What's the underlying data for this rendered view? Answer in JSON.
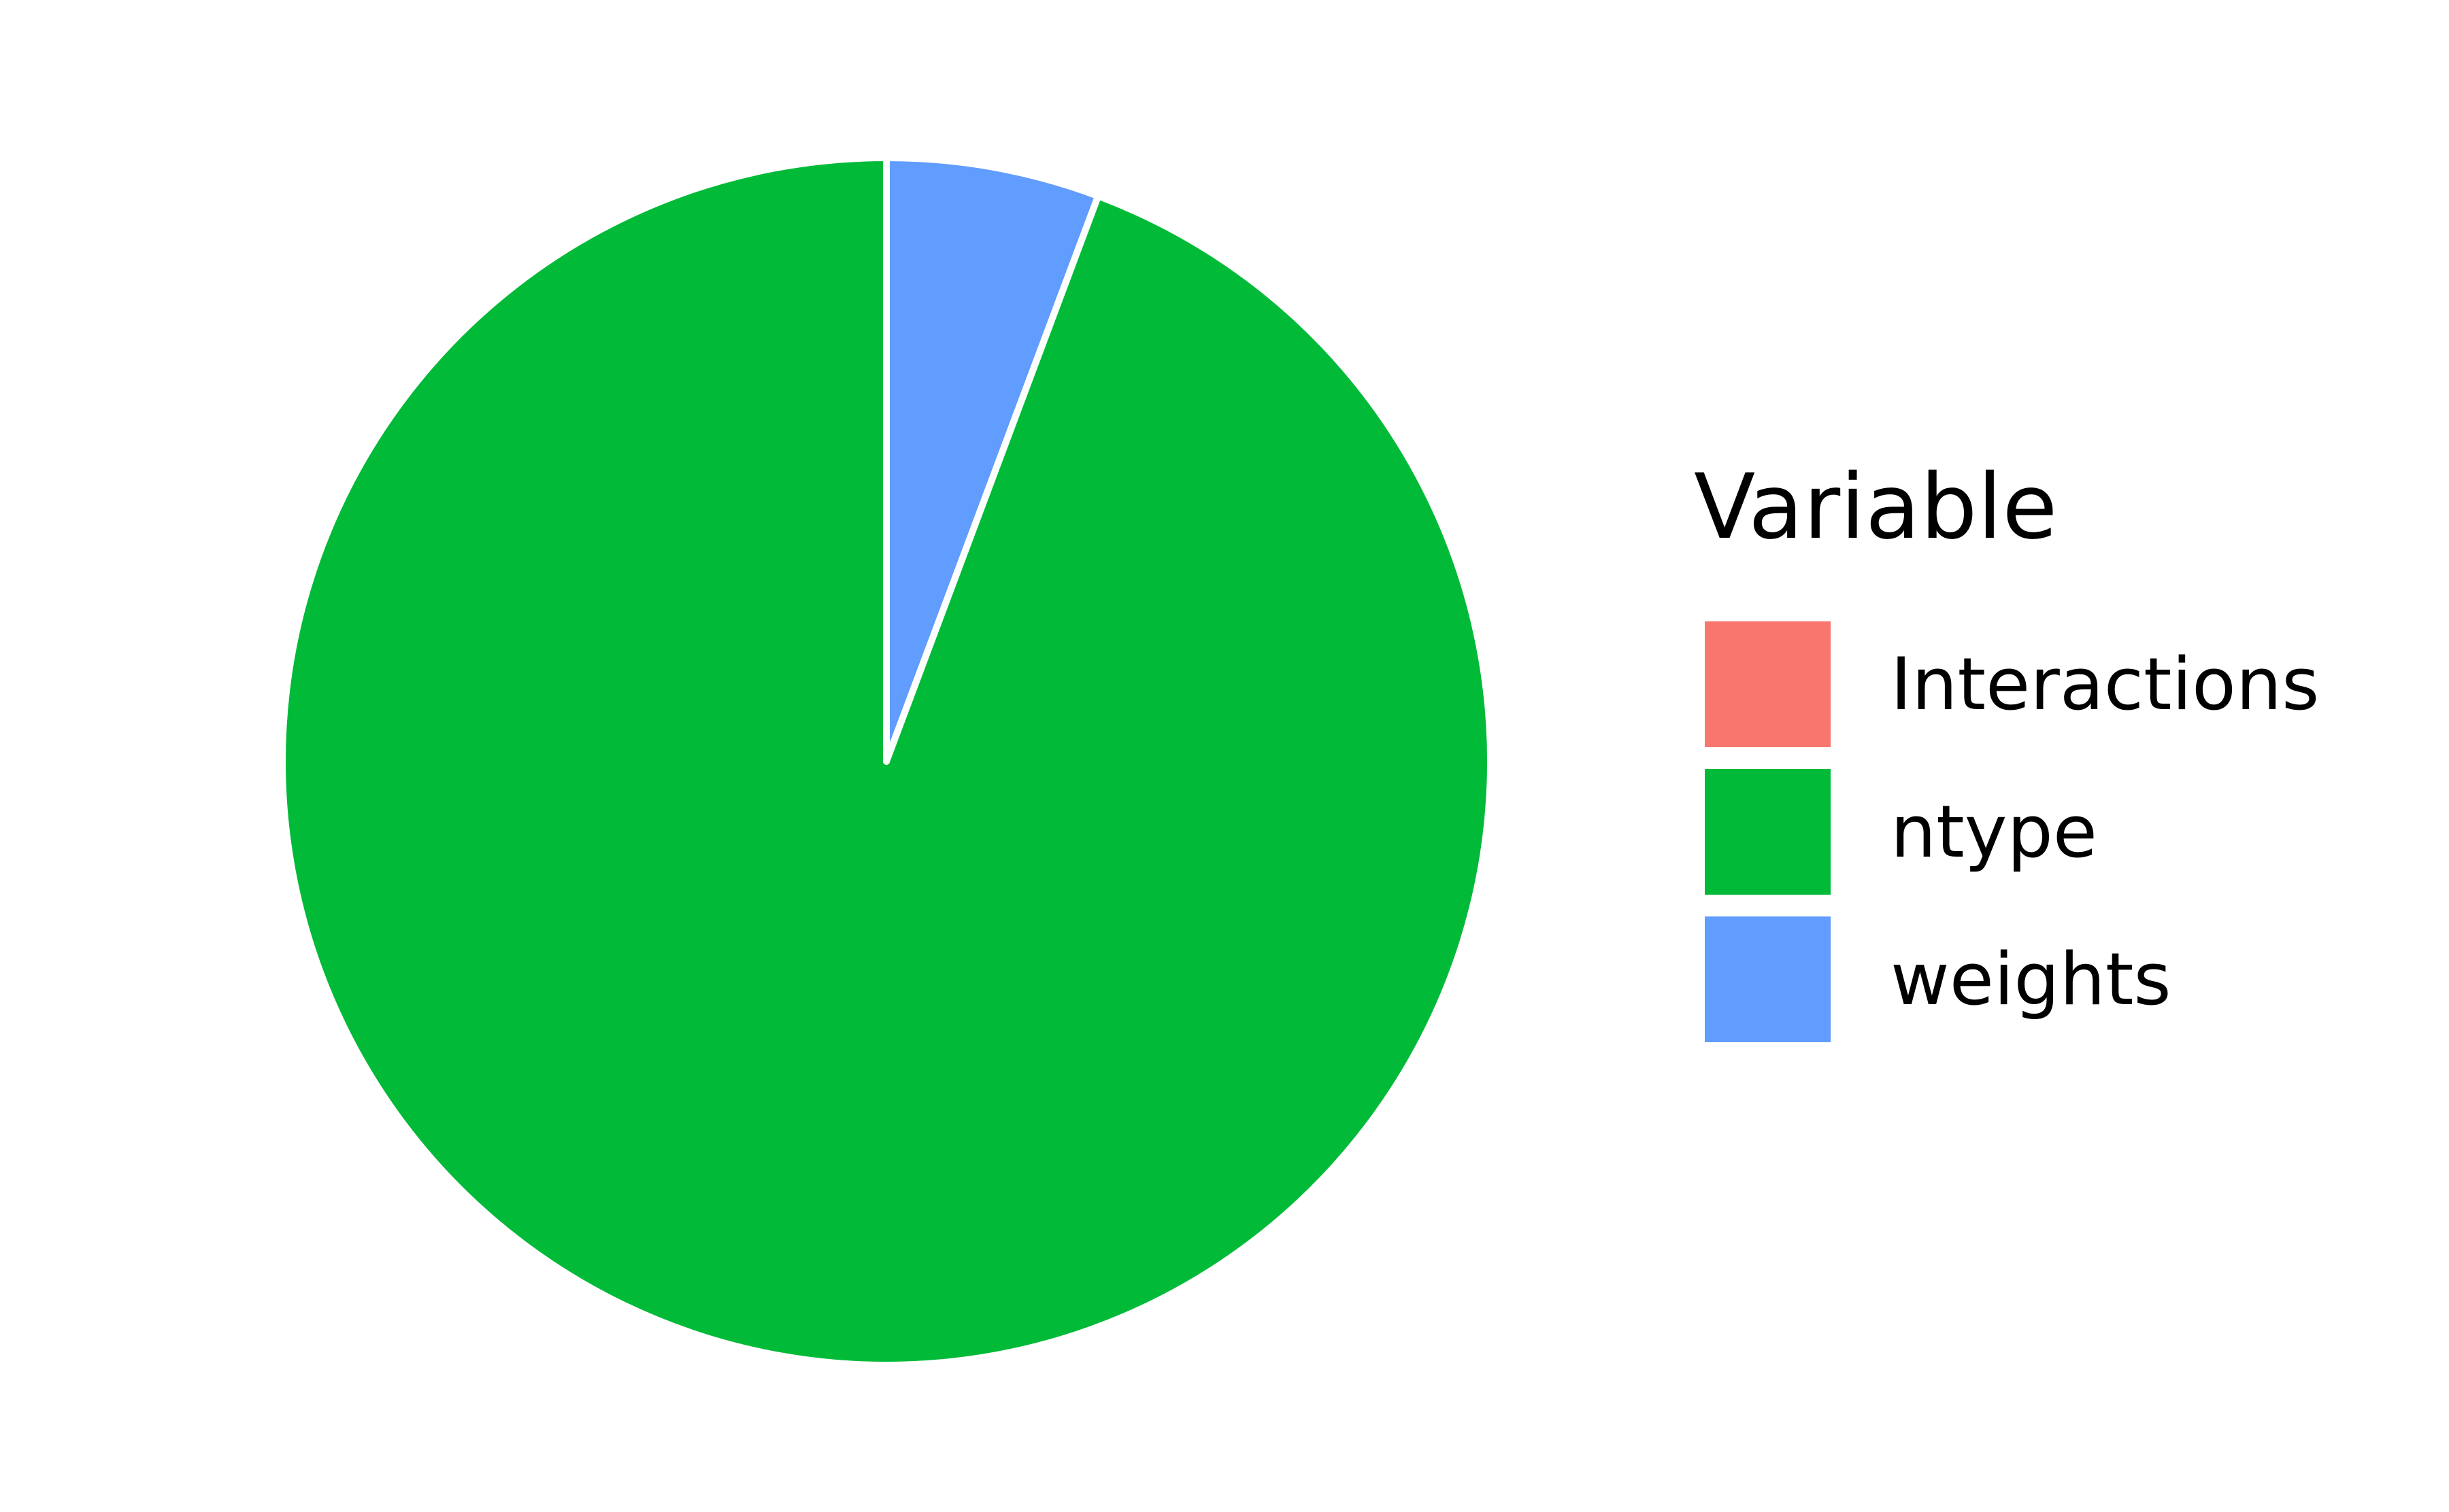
{
  "chart_data": {
    "type": "pie",
    "title": "",
    "legend_title": "Variable",
    "legend_position": "right",
    "start_angle": "top",
    "direction": "clockwise",
    "slices": [
      {
        "label": "Interactions",
        "value": 0.0,
        "color": "#F8766D"
      },
      {
        "label": "ntype",
        "value": 94.3,
        "color": "#00BA38"
      },
      {
        "label": "weights",
        "value": 5.7,
        "color": "#619CFF"
      }
    ],
    "draw_order": [
      "weights",
      "ntype",
      "Interactions"
    ],
    "slice_border_color": "#FFFFFF"
  }
}
